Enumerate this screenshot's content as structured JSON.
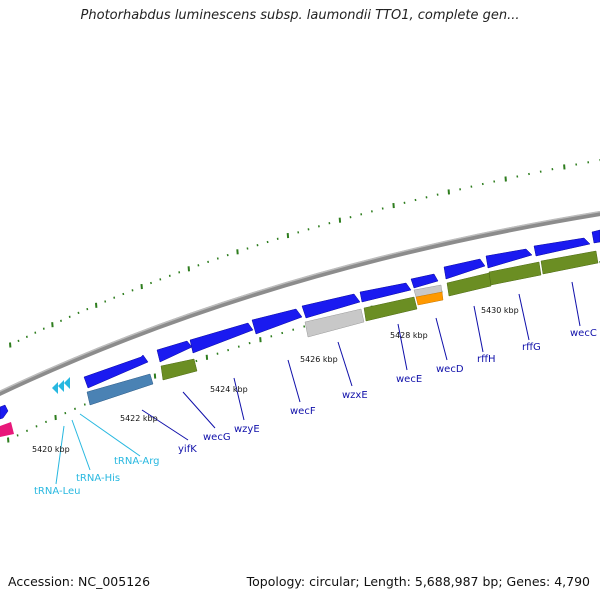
{
  "title": "Photorhabdus luminescens subsp. laumondii TTO1, complete gen...",
  "footer": {
    "accession": "Accession: NC_005126",
    "stats": "Topology: circular; Length: 5,688,987 bp; Genes: 4,790"
  },
  "colors": {
    "cds": "#1a1af0",
    "backbone": "#8c8c8c",
    "tick": "#2e7d1e",
    "gene_label": "#1010aa",
    "trna": "#28b8e0",
    "olive": "#6b8e23",
    "gray_feature": "#c8c8c8",
    "orange_feature": "#ff9900",
    "steelblue_feature": "#4a82b4",
    "pink_feature": "#e8187a"
  },
  "scale_labels": [
    "5420 kbp",
    "5422 kbp",
    "5424 kbp",
    "5426 kbp",
    "5428 kbp",
    "5430 kbp"
  ],
  "gene_labels": [
    "yifK",
    "wecG",
    "wzyE",
    "wecF",
    "wzxE",
    "wecE",
    "wecD",
    "rffH",
    "rffG",
    "wecC"
  ],
  "trna_labels": [
    "tRNA-Leu",
    "tRNA-His",
    "tRNA-Arg"
  ]
}
